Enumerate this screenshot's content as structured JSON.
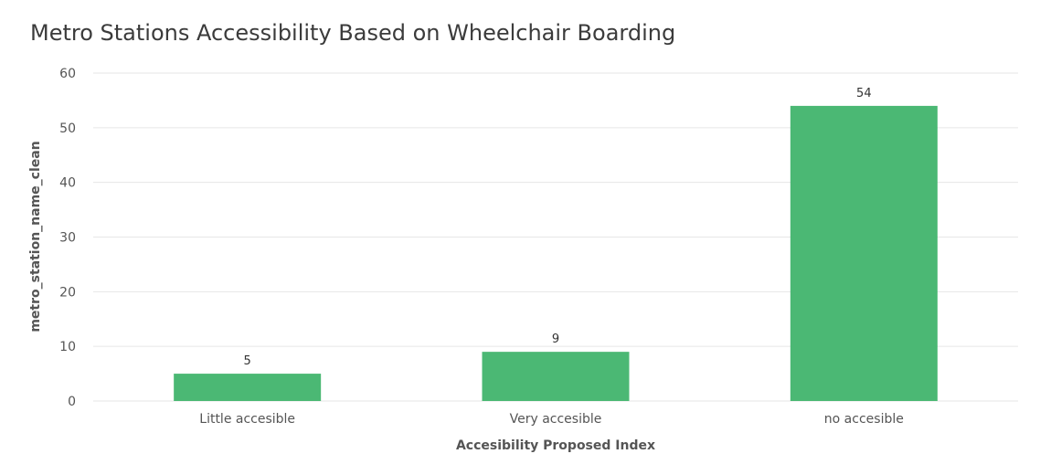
{
  "chart_data": {
    "type": "bar",
    "title": "Metro Stations Accessibility Based on Wheelchair Boarding",
    "xlabel": "Accesibility Proposed Index",
    "ylabel": "metro_station_name_clean",
    "categories": [
      "Little accesible",
      "Very accesible",
      "no accesible"
    ],
    "values": [
      5,
      9,
      54
    ],
    "data_labels": [
      "5",
      "9",
      "54"
    ],
    "yticks": [
      "0",
      "10",
      "20",
      "30",
      "40",
      "50",
      "60"
    ],
    "ylim": [
      0,
      60
    ],
    "grid": true,
    "legend": "none",
    "bar_color": "#4bb874"
  }
}
